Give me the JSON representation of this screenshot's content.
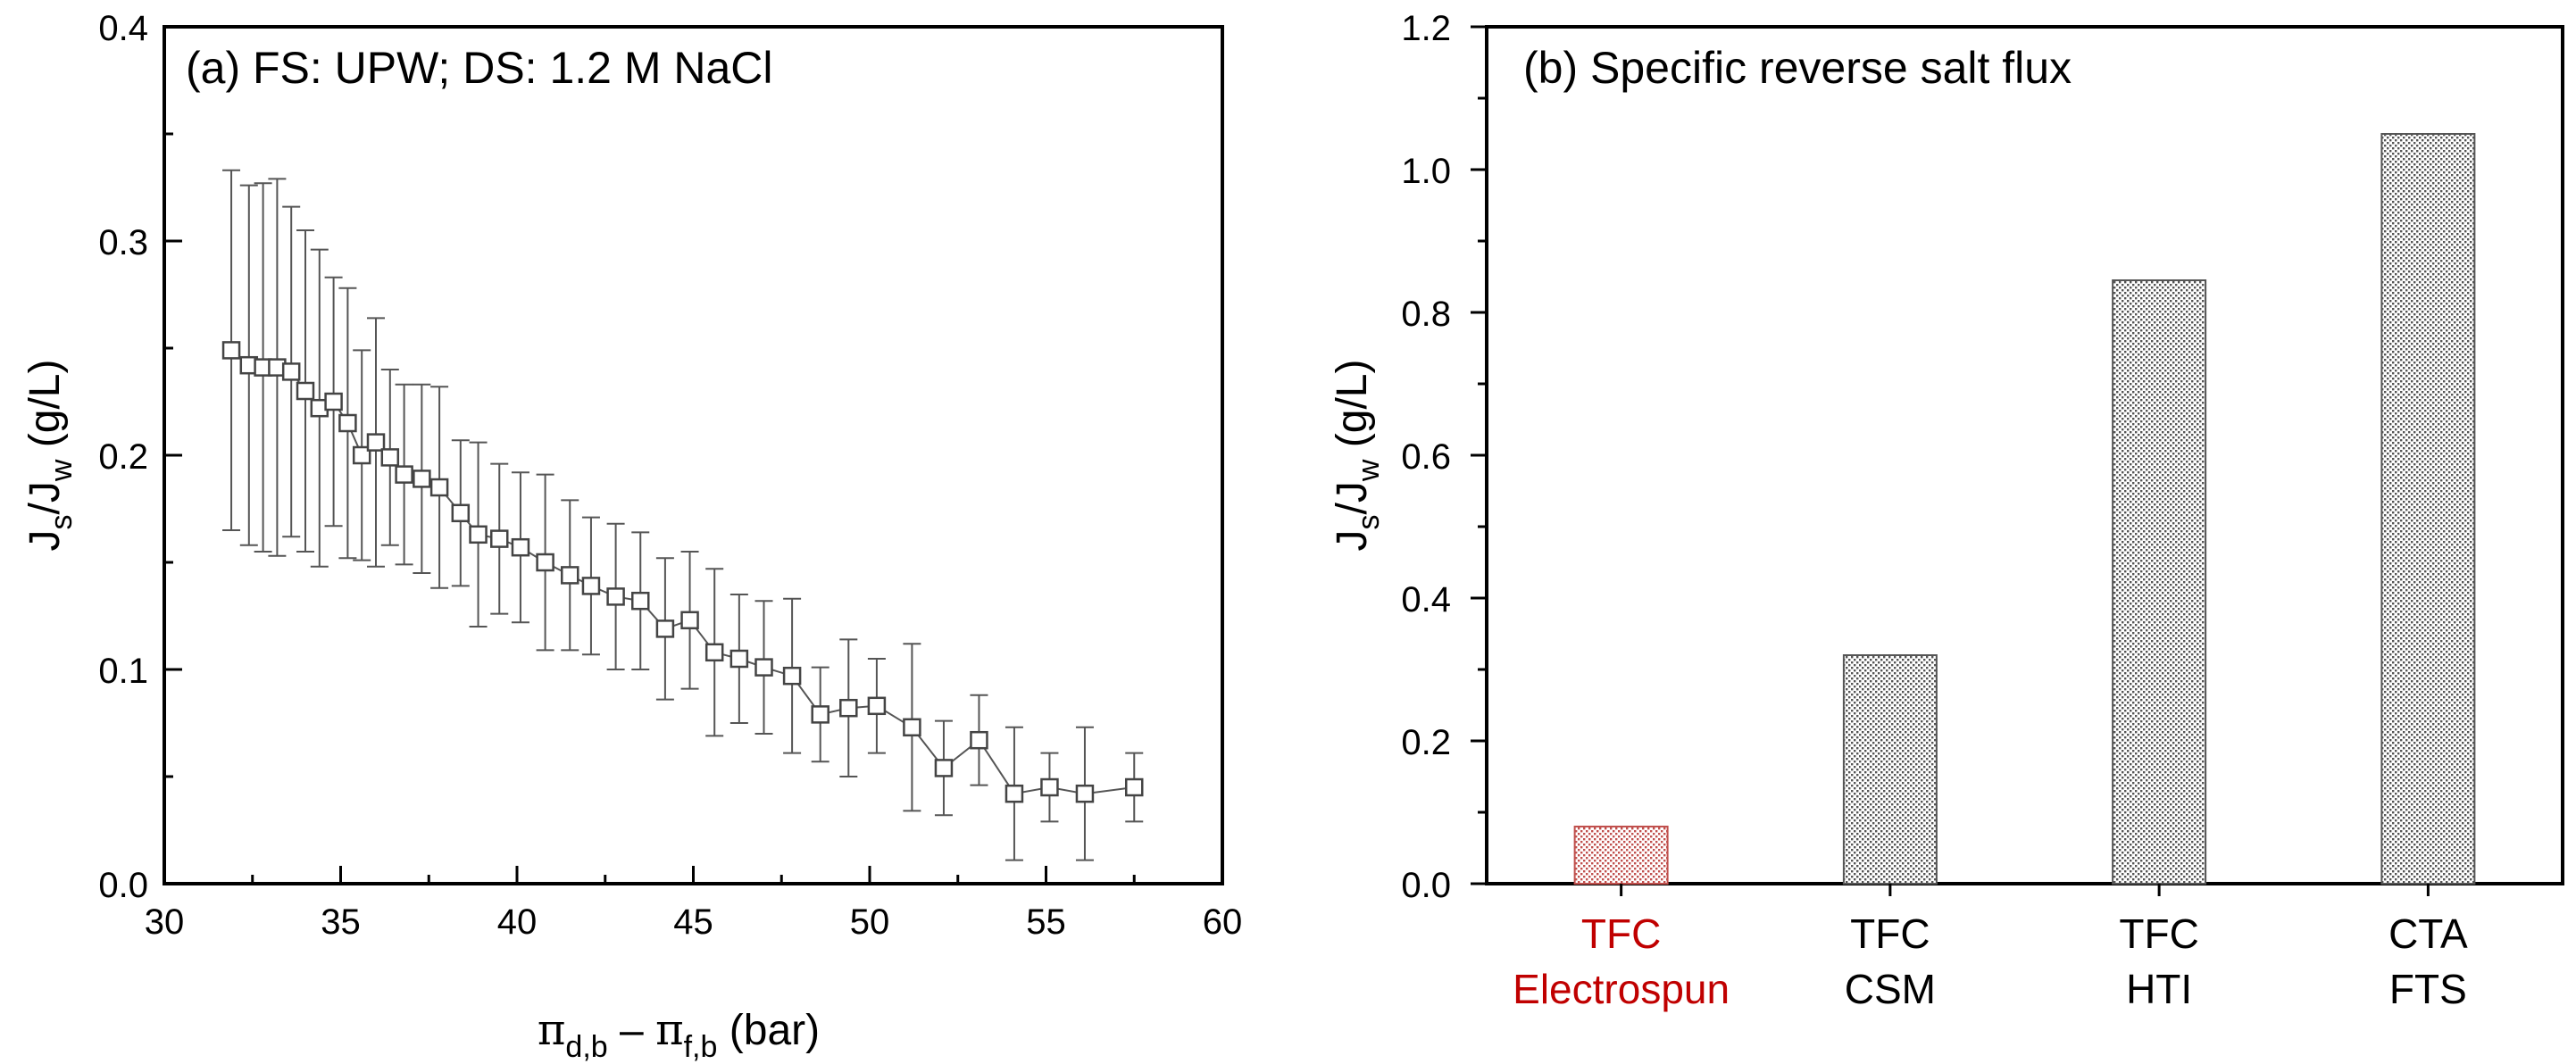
{
  "chart_data": [
    {
      "type": "scatter",
      "title": "(a) FS: UPW; DS: 1.2 M NaCl",
      "xlabel_parts": {
        "a": "π",
        "a_sub": "d,b",
        "dash": " – ",
        "b": "π",
        "b_sub": "f,b",
        "unit": " (bar)"
      },
      "ylabel_parts": {
        "a": "J",
        "a_sub": "s",
        "slash": "/J",
        "b_sub": "w",
        "unit": " (g/L)"
      },
      "xlim": [
        30,
        60
      ],
      "ylim": [
        0.0,
        0.4
      ],
      "xticks": [
        "30",
        "35",
        "40",
        "45",
        "50",
        "55",
        "60"
      ],
      "yticks": [
        "0.0",
        "0.1",
        "0.2",
        "0.3",
        "0.4"
      ],
      "marker": "open-square",
      "series": [
        {
          "name": "Js/Jw",
          "x": [
            31.9,
            32.4,
            32.8,
            33.2,
            33.6,
            34.0,
            34.4,
            34.8,
            35.2,
            35.6,
            36.0,
            36.4,
            36.8,
            37.3,
            37.8,
            38.4,
            38.9,
            39.5,
            40.1,
            40.8,
            41.5,
            42.1,
            42.8,
            43.5,
            44.2,
            44.9,
            45.6,
            46.3,
            47.0,
            47.8,
            48.6,
            49.4,
            50.2,
            51.2,
            52.1,
            53.1,
            54.1,
            55.1,
            56.1,
            57.5
          ],
          "y": [
            0.249,
            0.242,
            0.241,
            0.241,
            0.239,
            0.23,
            0.222,
            0.225,
            0.215,
            0.2,
            0.206,
            0.199,
            0.191,
            0.189,
            0.185,
            0.173,
            0.163,
            0.161,
            0.157,
            0.15,
            0.144,
            0.139,
            0.134,
            0.132,
            0.119,
            0.123,
            0.108,
            0.105,
            0.101,
            0.097,
            0.079,
            0.082,
            0.083,
            0.073,
            0.054,
            0.067,
            0.042,
            0.045,
            0.042,
            0.045
          ],
          "err": [
            0.084,
            0.084,
            0.086,
            0.088,
            0.077,
            0.075,
            0.074,
            0.058,
            0.063,
            0.049,
            0.058,
            0.041,
            0.042,
            0.044,
            0.047,
            0.034,
            0.043,
            0.035,
            0.035,
            0.041,
            0.035,
            0.032,
            0.034,
            0.032,
            0.033,
            0.032,
            0.039,
            0.03,
            0.031,
            0.036,
            0.022,
            0.032,
            0.022,
            0.039,
            0.022,
            0.021,
            0.031,
            0.016,
            0.031,
            0.016
          ]
        }
      ]
    },
    {
      "type": "bar",
      "title": "(b) Specific reverse salt flux",
      "ylabel_parts": {
        "a": "J",
        "a_sub": "s",
        "slash": "/J",
        "b_sub": "w",
        "unit": " (g/L)"
      },
      "ylim": [
        0.0,
        1.2
      ],
      "yticks": [
        "0.0",
        "0.2",
        "0.4",
        "0.6",
        "0.8",
        "1.0",
        "1.2"
      ],
      "categories": [
        {
          "line1": "TFC",
          "line2": "Electrospun",
          "color": "#c00000"
        },
        {
          "line1": "TFC",
          "line2": "CSM",
          "color": "#000000"
        },
        {
          "line1": "TFC",
          "line2": "HTI",
          "color": "#000000"
        },
        {
          "line1": "CTA",
          "line2": "FTS",
          "color": "#000000"
        }
      ],
      "values": [
        0.08,
        0.32,
        0.845,
        1.05
      ],
      "bar_colors": [
        "#c0504d",
        "#555555",
        "#555555",
        "#555555"
      ]
    }
  ]
}
